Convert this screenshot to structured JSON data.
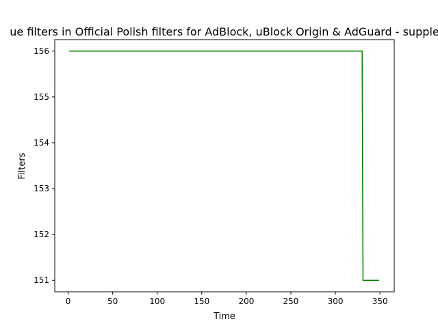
{
  "chart_data": {
    "type": "line",
    "title": "ue filters in Official Polish filters for AdBlock, uBlock Origin & AdGuard - supple",
    "xlabel": "Time",
    "ylabel": "Filters",
    "xlim": [
      -15,
      366
    ],
    "ylim": [
      150.75,
      156.25
    ],
    "xticks": [
      0,
      50,
      100,
      150,
      200,
      250,
      300,
      350
    ],
    "yticks": [
      151,
      152,
      153,
      154,
      155,
      156
    ],
    "grid": false,
    "series": [
      {
        "color": "#008000",
        "x": [
          1,
          330,
          331,
          349
        ],
        "y": [
          156,
          156,
          151,
          151
        ]
      }
    ]
  }
}
